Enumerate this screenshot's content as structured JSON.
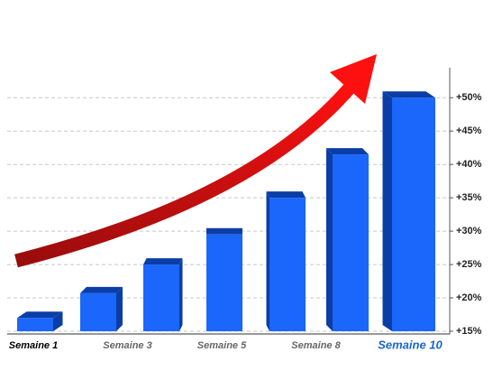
{
  "chart_data": {
    "type": "bar",
    "categories": [
      null,
      null,
      null,
      null,
      null,
      null,
      null
    ],
    "values": [
      17,
      20.7,
      25,
      29.5,
      35,
      41.5,
      50
    ],
    "color": "#1b66fb",
    "side_color": "#0a3ea6",
    "ylim": [
      15,
      54.5
    ],
    "yticks": [
      {
        "value": 15,
        "label": "+15%"
      },
      {
        "value": 20,
        "label": "+20%"
      },
      {
        "value": 25,
        "label": "+25%"
      },
      {
        "value": 30,
        "label": "+30%"
      },
      {
        "value": 35,
        "label": "+35%"
      },
      {
        "value": 40,
        "label": "+40%"
      },
      {
        "value": 45,
        "label": "+45%"
      },
      {
        "value": 50,
        "label": "+50%"
      }
    ],
    "grid": true,
    "x_labels": [
      "Semaine 1",
      "Semaine 3",
      "Semaine 5",
      "Semaine 8",
      "Semaine 10"
    ],
    "x_label_colors": [
      "#000000",
      "#666666",
      "#666666",
      "#666666",
      "#1b66d0"
    ]
  }
}
